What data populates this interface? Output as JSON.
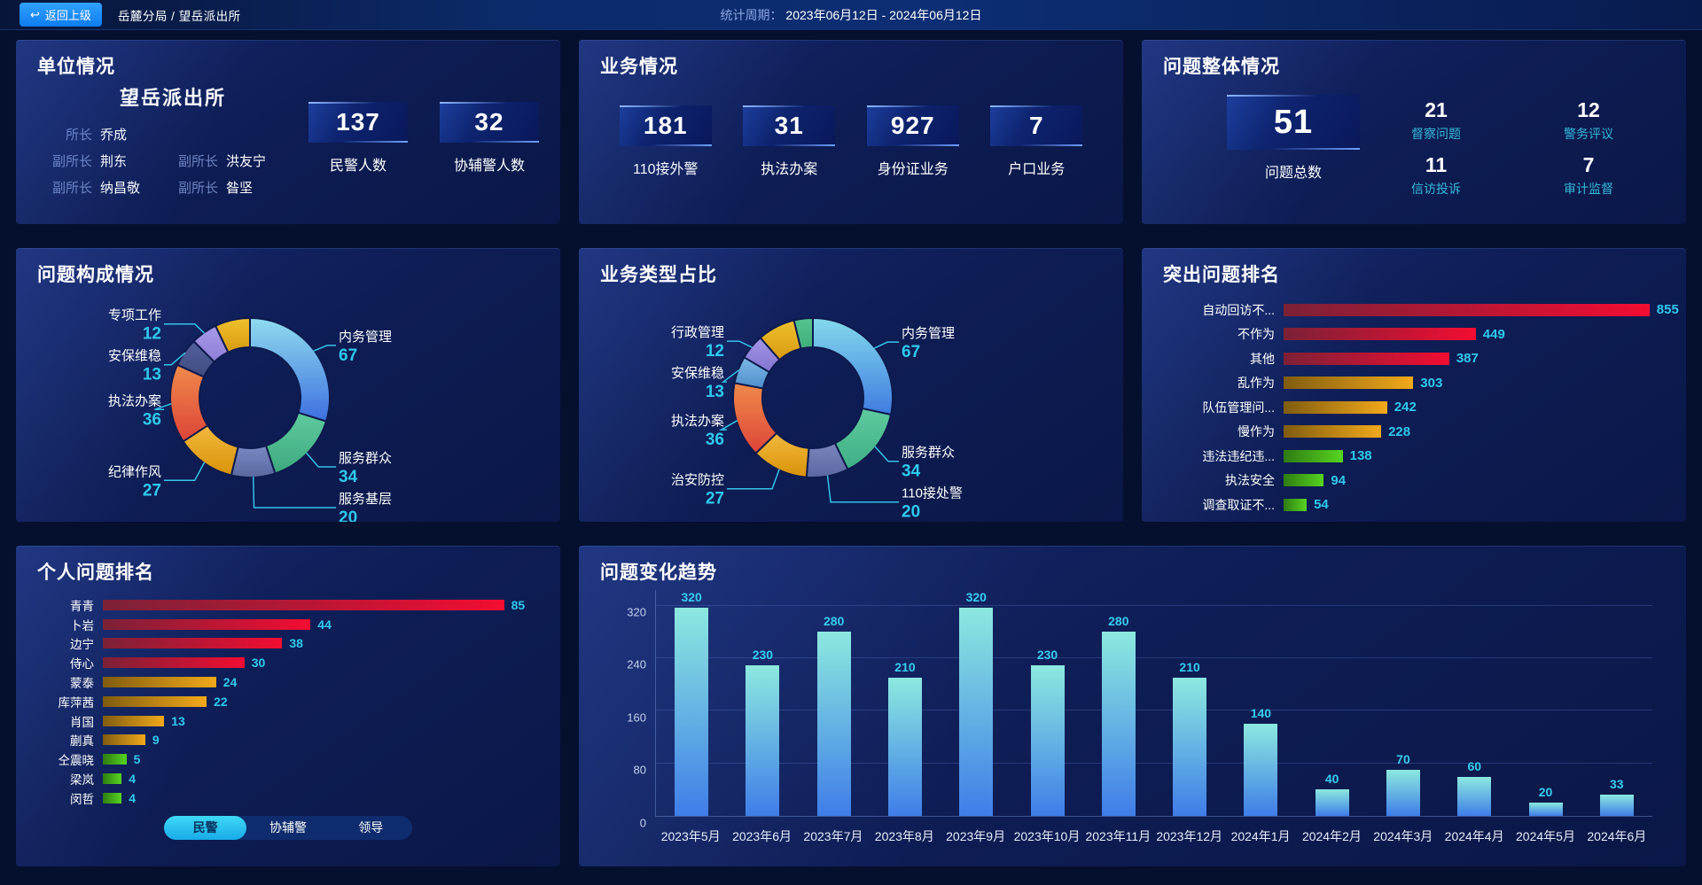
{
  "topbar": {
    "back_button": "返回上级",
    "breadcrumb": "岳麓分局 / 望岳派出所",
    "period_label": "统计周期：",
    "period_value": "2023年06月12日 - 2024年06月12日"
  },
  "colors": {
    "accent_cyan": "#2fc9ec",
    "leader_line": "#35c3e8",
    "segment_border": "#0d1a4d"
  },
  "palettes": {
    "red": [
      "#7c2137",
      "#f30d32"
    ],
    "gold": [
      "#805c10",
      "#f2a91a"
    ],
    "green": [
      "#2e7c12",
      "#57d420"
    ]
  },
  "panels": {
    "unit": {
      "title": "单位情况",
      "station_name": "望岳派出所",
      "leaders": [
        {
          "role": "所长",
          "name": "乔成"
        },
        {
          "role": "副所长",
          "name": "荆东"
        },
        {
          "role": "副所长",
          "name": "洪友宁"
        },
        {
          "role": "副所长",
          "name": "纳昌敬"
        },
        {
          "role": "副所长",
          "name": "昝坚"
        }
      ],
      "stats": [
        {
          "value": "137",
          "label": "民警人数"
        },
        {
          "value": "32",
          "label": "协辅警人数"
        }
      ]
    },
    "business": {
      "title": "业务情况",
      "stats": [
        {
          "value": "181",
          "label": "110接外警"
        },
        {
          "value": "31",
          "label": "执法办案"
        },
        {
          "value": "927",
          "label": "身份证业务"
        },
        {
          "value": "7",
          "label": "户口业务"
        }
      ]
    },
    "problem_overview": {
      "title": "问题整体情况",
      "total": {
        "value": "51",
        "label": "问题总数"
      },
      "stats": [
        {
          "value": "21",
          "label": "督察问题"
        },
        {
          "value": "12",
          "label": "警务评议"
        },
        {
          "value": "11",
          "label": "信访投诉"
        },
        {
          "value": "7",
          "label": "审计监督"
        }
      ]
    }
  },
  "chart_data": [
    {
      "id": "problem_composition",
      "type": "pie",
      "title": "问题构成情况",
      "legend_position": "callout-labels",
      "segments": [
        {
          "label": "内务管理",
          "value": 67,
          "c1": "#8fdcee",
          "c2": "#3d6fe0"
        },
        {
          "label": "服务群众",
          "value": 34,
          "c1": "#5ecb9e",
          "c2": "#3da87e"
        },
        {
          "label": "服务基层",
          "value": 20,
          "c1": "#7a89c2",
          "c2": "#59689f"
        },
        {
          "label": "纪律作风",
          "value": 27,
          "c1": "#f2b93e",
          "c2": "#d89208"
        },
        {
          "label": "执法办案",
          "value": 36,
          "c1": "#ef8a4a",
          "c2": "#dd4438"
        },
        {
          "label": "安保维稳",
          "value": 13,
          "c1": "#535f9c",
          "c2": "#3f4c80"
        },
        {
          "label": "专项工作",
          "value": 12,
          "c1": "#a99bea",
          "c2": "#8d7dd6"
        },
        {
          "label": "",
          "value": 16,
          "c1": "#eec02d",
          "c2": "#d89a10"
        }
      ]
    },
    {
      "id": "business_type",
      "type": "pie",
      "title": "业务类型占比",
      "legend_position": "callout-labels",
      "segments": [
        {
          "label": "内务管理",
          "value": 67,
          "c1": "#83d9ea",
          "c2": "#3f7ce2"
        },
        {
          "label": "服务群众",
          "value": 34,
          "c1": "#5ecb9e",
          "c2": "#3fae85"
        },
        {
          "label": "110接处警",
          "value": 20,
          "c1": "#7a84bc",
          "c2": "#5c68a2"
        },
        {
          "label": "治安防控",
          "value": 27,
          "c1": "#f2b93e",
          "c2": "#d89208"
        },
        {
          "label": "执法办案",
          "value": 36,
          "c1": "#ef8a4a",
          "c2": "#dd4438"
        },
        {
          "label": "安保维稳",
          "value": 13,
          "c1": "#7db9e8",
          "c2": "#4f8ecc"
        },
        {
          "label": "行政管理",
          "value": 12,
          "c1": "#a395e6",
          "c2": "#8374d0"
        },
        {
          "label": "",
          "value": 18,
          "c1": "#eec02d",
          "c2": "#d89a10"
        },
        {
          "label": "",
          "value": 9,
          "c1": "#55c48e",
          "c2": "#3fae7a"
        }
      ]
    },
    {
      "id": "outstanding_problems",
      "type": "bar-horizontal",
      "title": "突出问题排名",
      "xmax": 855,
      "items": [
        {
          "label": "自动回访不...",
          "value": 855,
          "palette": "red"
        },
        {
          "label": "不作为",
          "value": 449,
          "palette": "red"
        },
        {
          "label": "其他",
          "value": 387,
          "palette": "red"
        },
        {
          "label": "乱作为",
          "value": 303,
          "palette": "gold"
        },
        {
          "label": "队伍管理问...",
          "value": 242,
          "palette": "gold"
        },
        {
          "label": "慢作为",
          "value": 228,
          "palette": "gold"
        },
        {
          "label": "违法违纪违...",
          "value": 138,
          "palette": "green"
        },
        {
          "label": "执法安全",
          "value": 94,
          "palette": "green"
        },
        {
          "label": "调查取证不...",
          "value": 54,
          "palette": "green"
        }
      ]
    },
    {
      "id": "personal_problems",
      "type": "bar-horizontal",
      "title": "个人问题排名",
      "xmax": 85,
      "items": [
        {
          "label": "青青",
          "value": 85,
          "palette": "red"
        },
        {
          "label": "卜岩",
          "value": 44,
          "palette": "red"
        },
        {
          "label": "边宁",
          "value": 38,
          "palette": "red"
        },
        {
          "label": "侍心",
          "value": 30,
          "palette": "red"
        },
        {
          "label": "蒙泰",
          "value": 24,
          "palette": "gold"
        },
        {
          "label": "库萍茜",
          "value": 22,
          "palette": "gold"
        },
        {
          "label": "肖国",
          "value": 13,
          "palette": "gold"
        },
        {
          "label": "蒯真",
          "value": 9,
          "palette": "gold"
        },
        {
          "label": "仝震晓",
          "value": 5,
          "palette": "green"
        },
        {
          "label": "梁岚",
          "value": 4,
          "palette": "green"
        },
        {
          "label": "闵哲",
          "value": 4,
          "palette": "green"
        }
      ],
      "tabs": [
        {
          "label": "民警",
          "active": true
        },
        {
          "label": "协辅警",
          "active": false
        },
        {
          "label": "领导",
          "active": false
        }
      ]
    },
    {
      "id": "problem_trend",
      "type": "bar",
      "title": "问题变化趋势",
      "categories": [
        "2023年5月",
        "2023年6月",
        "2023年7月",
        "2023年8月",
        "2023年9月",
        "2023年10月",
        "2023年11月",
        "2023年12月",
        "2024年1月",
        "2024年2月",
        "2024年3月",
        "2024年4月",
        "2024年5月",
        "2024年6月"
      ],
      "values": [
        320,
        230,
        280,
        210,
        320,
        230,
        280,
        210,
        140,
        40,
        70,
        60,
        20,
        33
      ],
      "yticks": [
        0,
        80,
        160,
        240,
        320
      ],
      "ylim": [
        0,
        344
      ],
      "grid": true,
      "bar_c1": "#8ce9df",
      "bar_c2": "#3f7de8"
    }
  ]
}
